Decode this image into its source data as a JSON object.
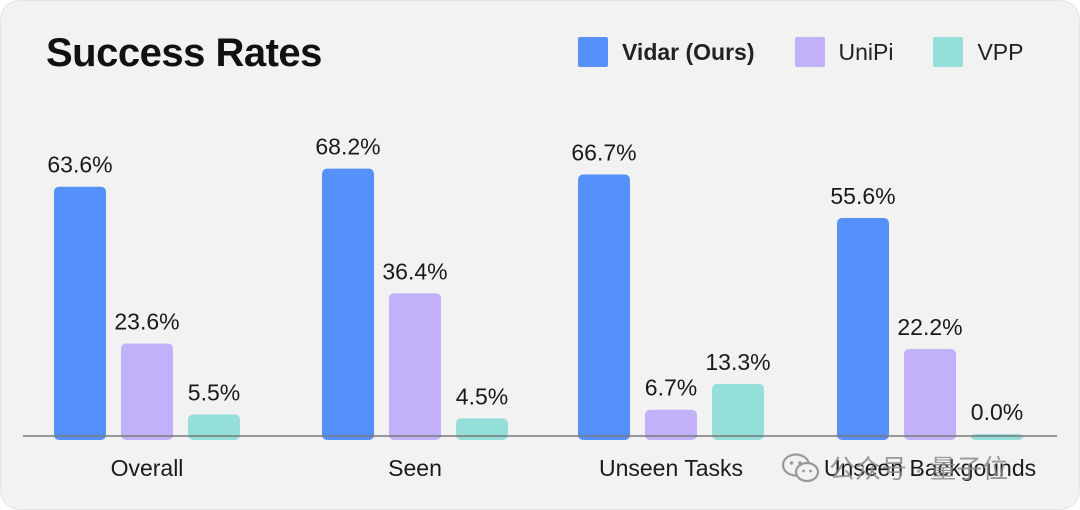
{
  "chart_data": {
    "type": "bar",
    "title": "Success Rates",
    "categories": [
      "Overall",
      "Seen",
      "Unseen Tasks",
      "Unseen Backgounds"
    ],
    "series": [
      {
        "name": "Vidar (Ours)",
        "color": "#5591fc",
        "values": [
          63.6,
          68.2,
          66.7,
          55.6
        ],
        "labels": [
          "63.6%",
          "68.2%",
          "66.7%",
          "55.6%"
        ]
      },
      {
        "name": "UniPi",
        "color": "#c2b0fb",
        "values": [
          23.6,
          36.4,
          6.7,
          22.2
        ],
        "labels": [
          "23.6%",
          "36.4%",
          "6.7%",
          "22.2%"
        ]
      },
      {
        "name": "VPP",
        "color": "#94dfd9",
        "values": [
          5.5,
          4.5,
          13.3,
          0.0
        ],
        "labels": [
          "5.5%",
          "4.5%",
          "13.3%",
          "0.0%"
        ]
      }
    ],
    "ylim": [
      0,
      75
    ],
    "grid": false,
    "legend_position": "top-right"
  },
  "watermark": {
    "text": "公众号 · 量子位",
    "icon": "wechat-icon"
  }
}
